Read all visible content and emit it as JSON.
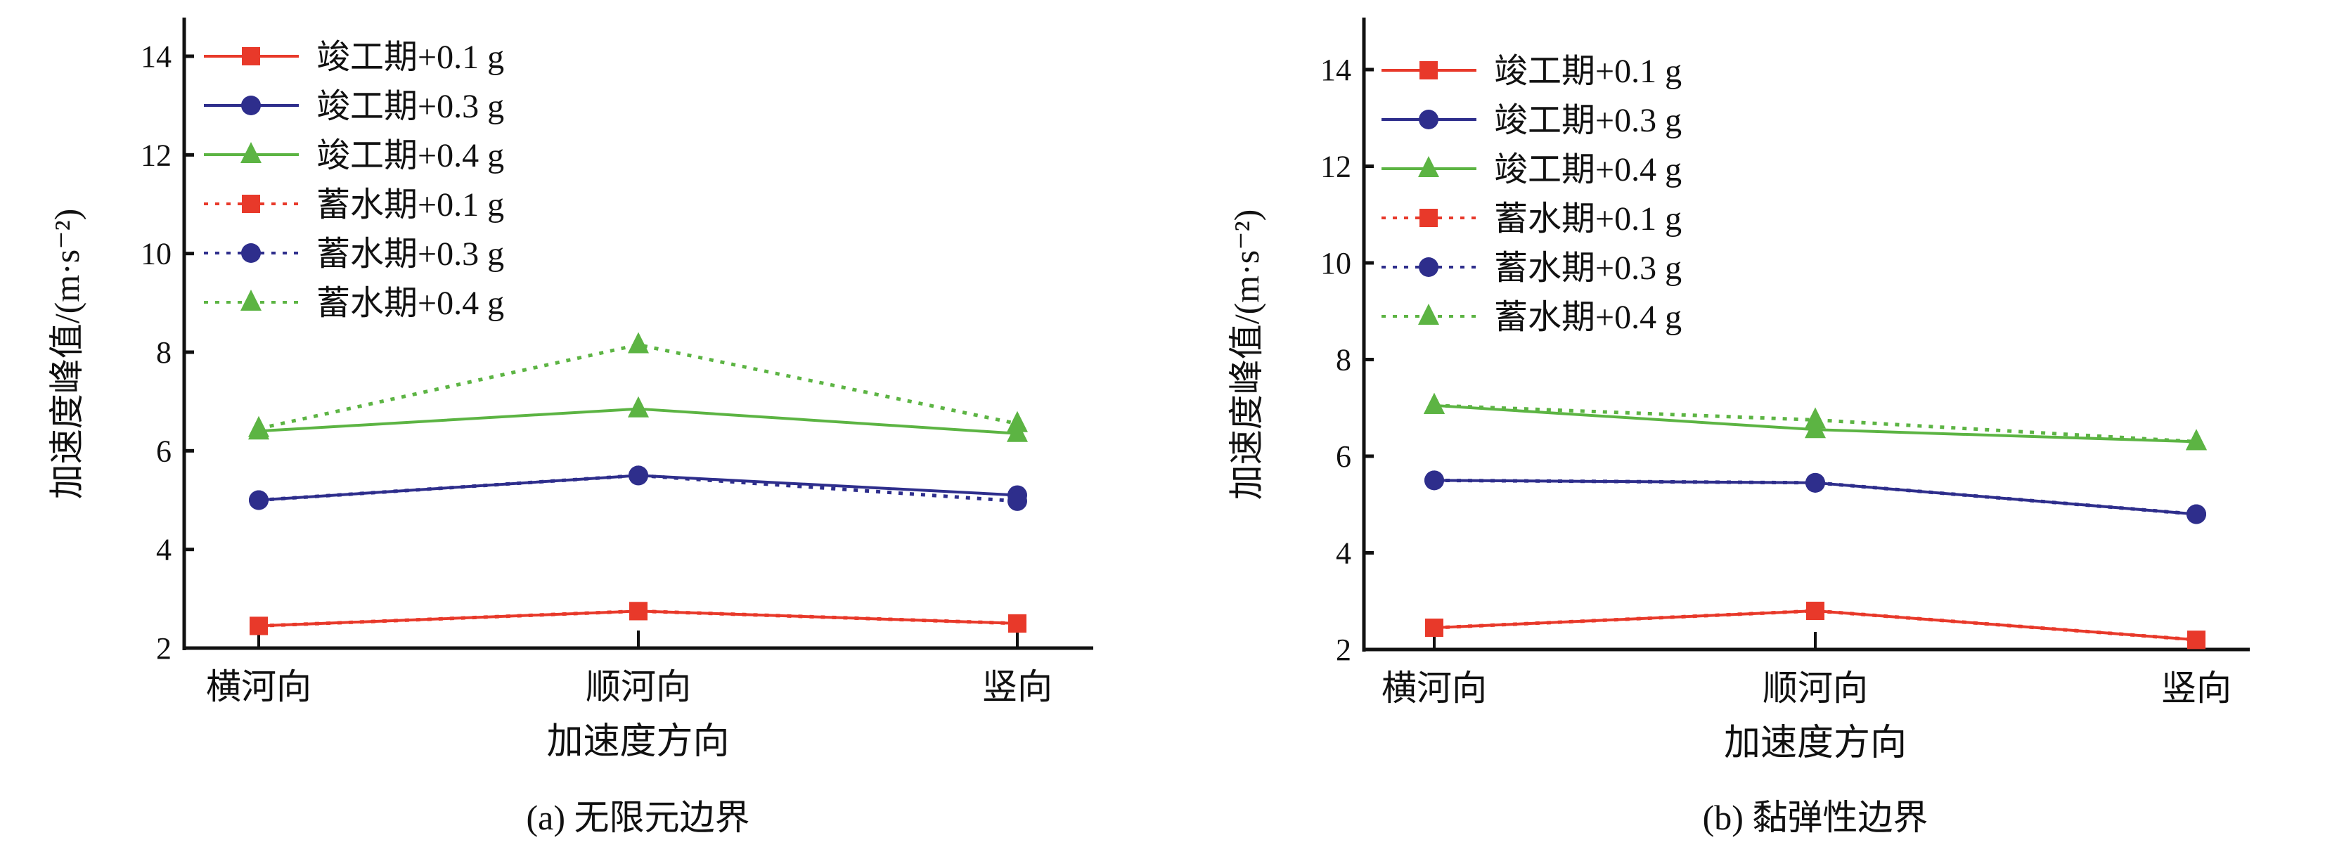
{
  "colors": {
    "red": "#e8392a",
    "blue": "#2e2e8c",
    "green": "#5cb443"
  },
  "chart_data": [
    {
      "type": "line",
      "title": "(a) 无限元边界",
      "xlabel": "加速度方向",
      "ylabel": "加速度峰值/(m·s⁻²)",
      "categories": [
        "横河向",
        "顺河向",
        "竖向"
      ],
      "ylim": [
        2,
        14
      ],
      "yticks": [
        2,
        4,
        6,
        8,
        10,
        12,
        14
      ],
      "legend": "top-left",
      "series": [
        {
          "name": "竣工期+0.1 g",
          "color": "red",
          "marker": "square",
          "dash": false,
          "values": [
            2.45,
            2.75,
            2.5
          ]
        },
        {
          "name": "竣工期+0.3 g",
          "color": "blue",
          "marker": "circle",
          "dash": false,
          "values": [
            5.0,
            5.5,
            5.1
          ]
        },
        {
          "name": "竣工期+0.4 g",
          "color": "green",
          "marker": "triangle",
          "dash": false,
          "values": [
            6.4,
            6.85,
            6.35
          ]
        },
        {
          "name": "蓄水期+0.1 g",
          "color": "red",
          "marker": "square",
          "dash": true,
          "values": [
            2.45,
            2.75,
            2.5
          ]
        },
        {
          "name": "蓄水期+0.3 g",
          "color": "blue",
          "marker": "circle",
          "dash": true,
          "values": [
            5.0,
            5.5,
            4.98
          ]
        },
        {
          "name": "蓄水期+0.4 g",
          "color": "green",
          "marker": "triangle",
          "dash": true,
          "values": [
            6.45,
            8.15,
            6.55
          ]
        }
      ]
    },
    {
      "type": "line",
      "title": "(b) 黏弹性边界",
      "xlabel": "加速度方向",
      "ylabel": "加速度峰值/(m·s⁻²)",
      "categories": [
        "横河向",
        "顺河向",
        "竖向"
      ],
      "ylim": [
        2,
        14
      ],
      "yticks": [
        2,
        4,
        6,
        8,
        10,
        12,
        14
      ],
      "legend": "top-left",
      "series": [
        {
          "name": "竣工期+0.1 g",
          "color": "red",
          "marker": "square",
          "dash": false,
          "values": [
            2.45,
            2.8,
            2.2
          ]
        },
        {
          "name": "竣工期+0.3 g",
          "color": "blue",
          "marker": "circle",
          "dash": false,
          "values": [
            5.5,
            5.45,
            4.8
          ]
        },
        {
          "name": "竣工期+0.4 g",
          "color": "green",
          "marker": "triangle",
          "dash": false,
          "values": [
            7.05,
            6.55,
            6.3
          ]
        },
        {
          "name": "蓄水期+0.1 g",
          "color": "red",
          "marker": "square",
          "dash": true,
          "values": [
            2.45,
            2.8,
            2.2
          ]
        },
        {
          "name": "蓄水期+0.3 g",
          "color": "blue",
          "marker": "circle",
          "dash": true,
          "values": [
            5.5,
            5.45,
            4.8
          ]
        },
        {
          "name": "蓄水期+0.4 g",
          "color": "green",
          "marker": "triangle",
          "dash": true,
          "values": [
            7.05,
            6.75,
            6.3
          ]
        }
      ]
    }
  ]
}
